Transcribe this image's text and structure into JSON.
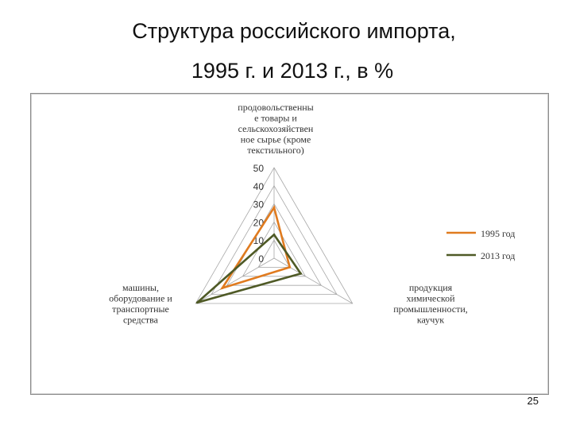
{
  "slide": {
    "title_line1": "Структура российского импорта,",
    "title_line2": "1995 г. и 2013 г., в %",
    "page_number": "25"
  },
  "chart_data": {
    "type": "radar",
    "title": "",
    "axes": [
      [
        "продовольственны",
        "е товары и",
        "сельскохозяйствен",
        "ное сырье (кроме",
        "текстильного)"
      ],
      [
        "продукция",
        "химической",
        "промышленности,",
        "каучук"
      ],
      [
        "машины,",
        "оборудование и",
        "транспортные",
        "средства"
      ]
    ],
    "rlim": [
      0,
      50
    ],
    "ticks": [
      0,
      10,
      20,
      30,
      40,
      50
    ],
    "grid": true,
    "legend_position": "right",
    "series": [
      {
        "name": "1995 год",
        "values": [
          28,
          10,
          33
        ],
        "color": "#e07b1f"
      },
      {
        "name": "2013 год",
        "values": [
          13,
          17,
          49
        ],
        "color": "#4f5a26"
      }
    ]
  }
}
